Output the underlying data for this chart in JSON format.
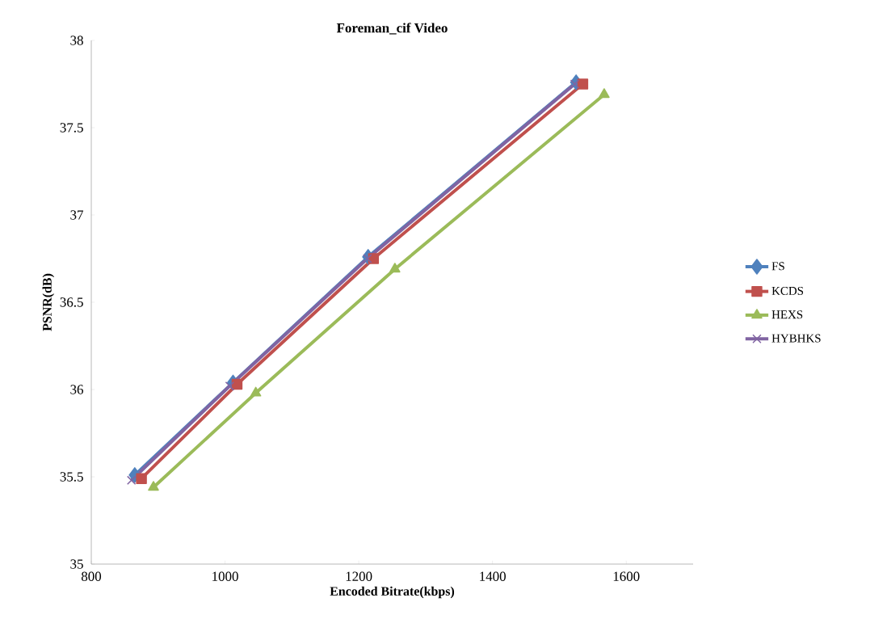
{
  "chart_data": {
    "type": "line",
    "title": "Foreman_cif Video",
    "xlabel": "Encoded Bitrate(kbps)",
    "ylabel": "PSNR(dB)",
    "xlim": [
      800,
      1700
    ],
    "xticks": [
      800,
      1000,
      1200,
      1400,
      1600
    ],
    "ylim": [
      35,
      38
    ],
    "yticks": [
      35,
      35.5,
      36,
      36.5,
      37,
      37.5,
      38
    ],
    "grid": false,
    "legend": "right",
    "line_style": "solid",
    "series": [
      {
        "name": "FS",
        "color": "#4f81bd",
        "marker": "diamond",
        "x": [
          865,
          1012,
          1214,
          1525
        ],
        "values": [
          35.51,
          36.04,
          36.76,
          37.76
        ]
      },
      {
        "name": "KCDS",
        "color": "#c0504d",
        "marker": "square",
        "x": [
          875,
          1018,
          1222,
          1535
        ],
        "values": [
          35.49,
          36.03,
          36.75,
          37.75
        ]
      },
      {
        "name": "HEXS",
        "color": "#9bbb59",
        "marker": "triangle",
        "x": [
          893,
          1046,
          1254,
          1567
        ],
        "values": [
          35.44,
          35.98,
          36.69,
          37.69
        ]
      },
      {
        "name": "HYBHKS",
        "color": "#8064a2",
        "marker": "cross",
        "x": [
          860,
          1007,
          1213,
          1523
        ],
        "values": [
          35.48,
          36.02,
          36.75,
          37.75
        ]
      }
    ]
  }
}
